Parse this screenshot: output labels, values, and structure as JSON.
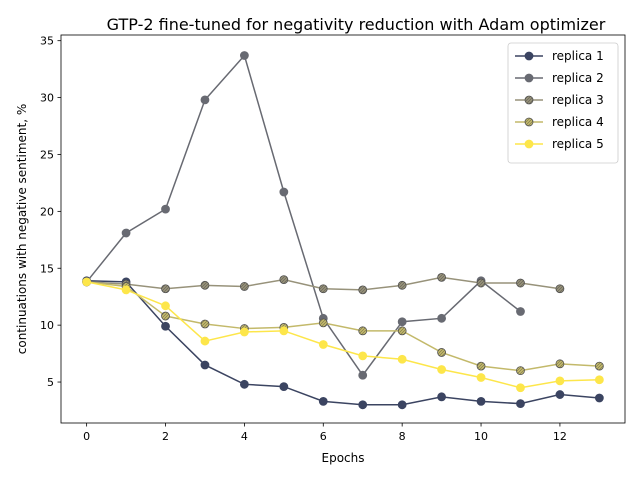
{
  "chart_data": {
    "type": "line",
    "title": "GTP-2 fine-tuned for negativity reduction with Adam optimizer",
    "xlabel": "Epochs",
    "ylabel": "continuations with negative sentiment, %",
    "xlim": [
      -0.65,
      13.65
    ],
    "ylim": [
      1.4,
      35.5
    ],
    "x_ticks": [
      0,
      2,
      4,
      6,
      8,
      10,
      12
    ],
    "y_ticks": [
      5,
      10,
      15,
      20,
      25,
      30,
      35
    ],
    "grid": false,
    "legend_position": "top-right",
    "series": [
      {
        "name": "replica 1",
        "color": "#3b4461",
        "marker": "solid",
        "x": [
          0,
          1,
          2,
          3,
          4,
          5,
          6,
          7,
          8,
          9,
          10,
          11,
          12,
          13
        ],
        "values": [
          13.9,
          13.8,
          9.9,
          6.5,
          4.8,
          4.6,
          3.3,
          3.0,
          3.0,
          3.7,
          3.3,
          3.1,
          3.9,
          3.6
        ]
      },
      {
        "name": "replica 2",
        "color": "#686a72",
        "marker": "solid",
        "x": [
          0,
          1,
          2,
          3,
          4,
          5,
          6,
          7,
          8,
          9,
          10,
          11
        ],
        "values": [
          13.8,
          18.1,
          20.2,
          29.8,
          33.7,
          21.7,
          10.6,
          5.6,
          10.3,
          10.6,
          13.9,
          11.2
        ]
      },
      {
        "name": "replica 3",
        "color": "#97927a",
        "marker": "hatched",
        "x": [
          0,
          1,
          2,
          3,
          4,
          5,
          6,
          7,
          8,
          9,
          10,
          11,
          12
        ],
        "values": [
          13.8,
          13.6,
          13.2,
          13.5,
          13.4,
          14.0,
          13.2,
          13.1,
          13.5,
          14.2,
          13.7,
          13.7,
          13.2
        ]
      },
      {
        "name": "replica 4",
        "color": "#c3b96a",
        "marker": "hatched",
        "x": [
          0,
          1,
          2,
          3,
          4,
          5,
          6,
          7,
          8,
          9,
          10,
          11,
          12,
          13
        ],
        "values": [
          13.8,
          13.4,
          10.8,
          10.1,
          9.7,
          9.8,
          10.2,
          9.5,
          9.5,
          7.6,
          6.4,
          6.0,
          6.6,
          6.4
        ]
      },
      {
        "name": "replica 5",
        "color": "#fde64a",
        "marker": "solid",
        "x": [
          0,
          1,
          2,
          3,
          4,
          5,
          6,
          7,
          8,
          9,
          10,
          11,
          12,
          13
        ],
        "values": [
          13.8,
          13.1,
          11.7,
          8.6,
          9.4,
          9.5,
          8.3,
          7.3,
          7.0,
          6.1,
          5.4,
          4.5,
          5.1,
          5.2
        ]
      }
    ]
  }
}
